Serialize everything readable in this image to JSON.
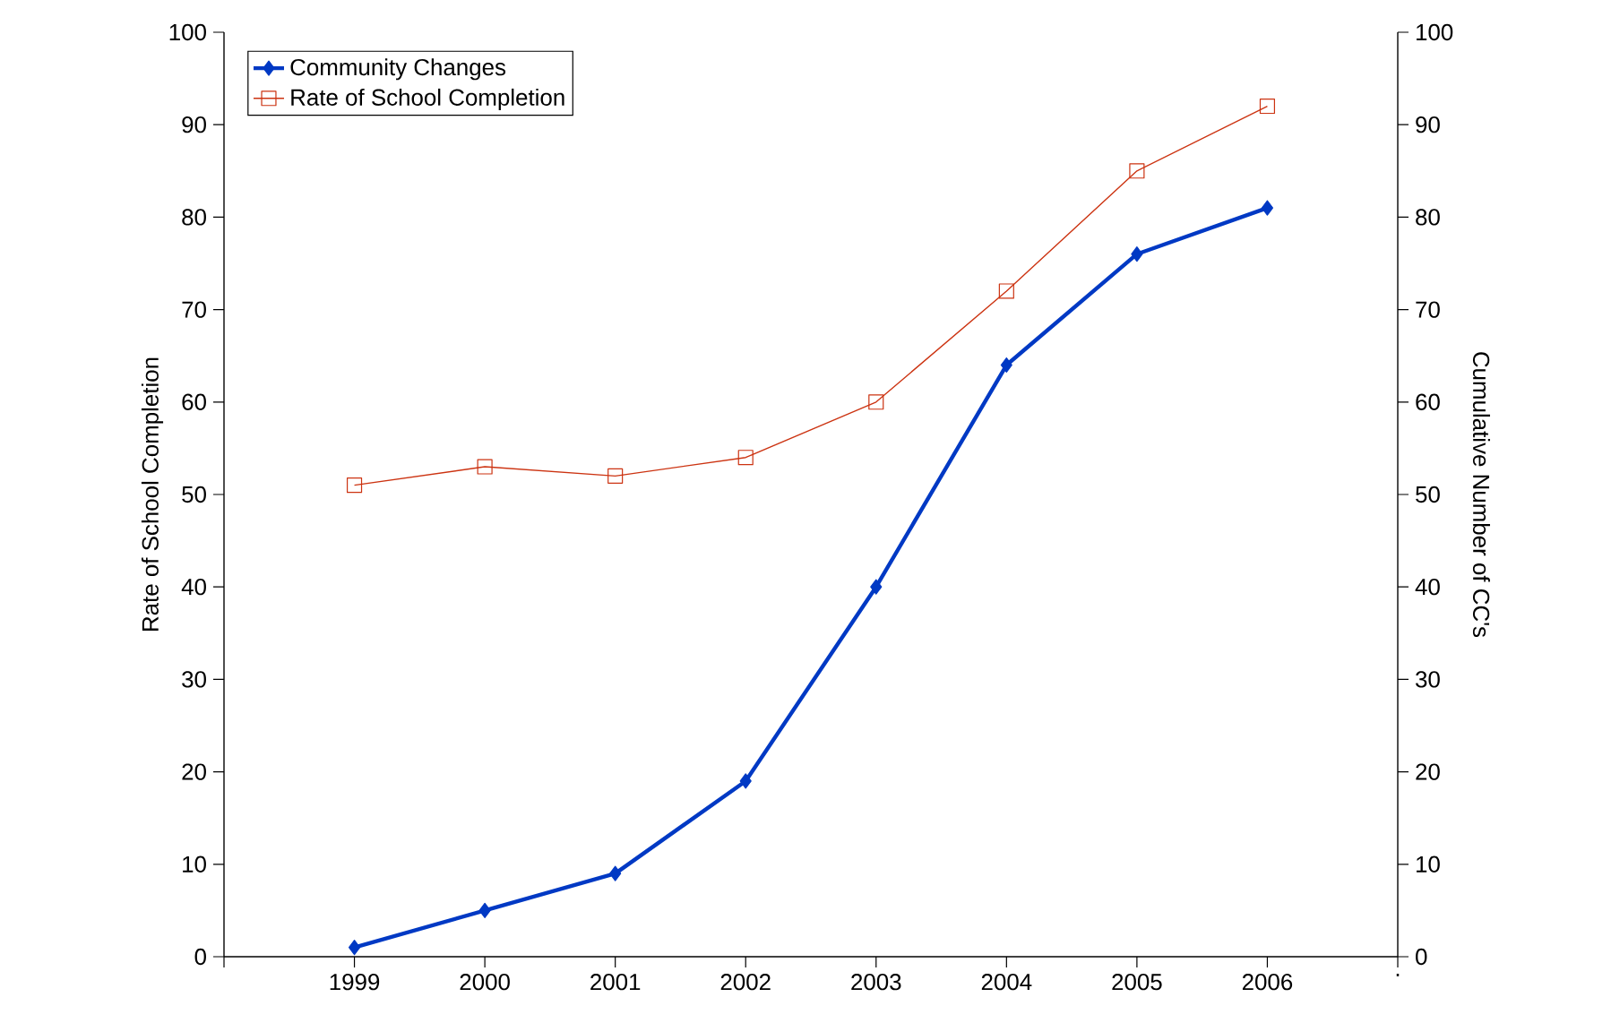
{
  "chart_data": {
    "type": "line",
    "ylabel": "Rate of School Completion",
    "y2label": "Cumulative Number of CC's",
    "categories": [
      null,
      "1999",
      "2000",
      "2001",
      "2002",
      "2003",
      "2004",
      "2005",
      "2006",
      "."
    ],
    "series": [
      {
        "name": "Community Changes",
        "color": "#0039c4",
        "axis": "y2",
        "marker": "diamond",
        "values": [
          null,
          1,
          5,
          9,
          19,
          40,
          64,
          76,
          81,
          null
        ]
      },
      {
        "name": "Rate of School Completion",
        "color": "#cc3311",
        "marker": "square",
        "values": [
          null,
          51,
          53,
          52,
          54,
          60,
          72,
          85,
          92,
          null
        ]
      }
    ],
    "ylim": [
      0,
      100
    ],
    "yticks": [
      0,
      10,
      20,
      30,
      40,
      50,
      60,
      70,
      80,
      90,
      100
    ],
    "y2lim": [
      0,
      100
    ],
    "y2ticks": [
      0,
      10,
      20,
      30,
      40,
      50,
      60,
      70,
      80,
      90,
      100
    ],
    "legend": "top left",
    "grid": false
  }
}
